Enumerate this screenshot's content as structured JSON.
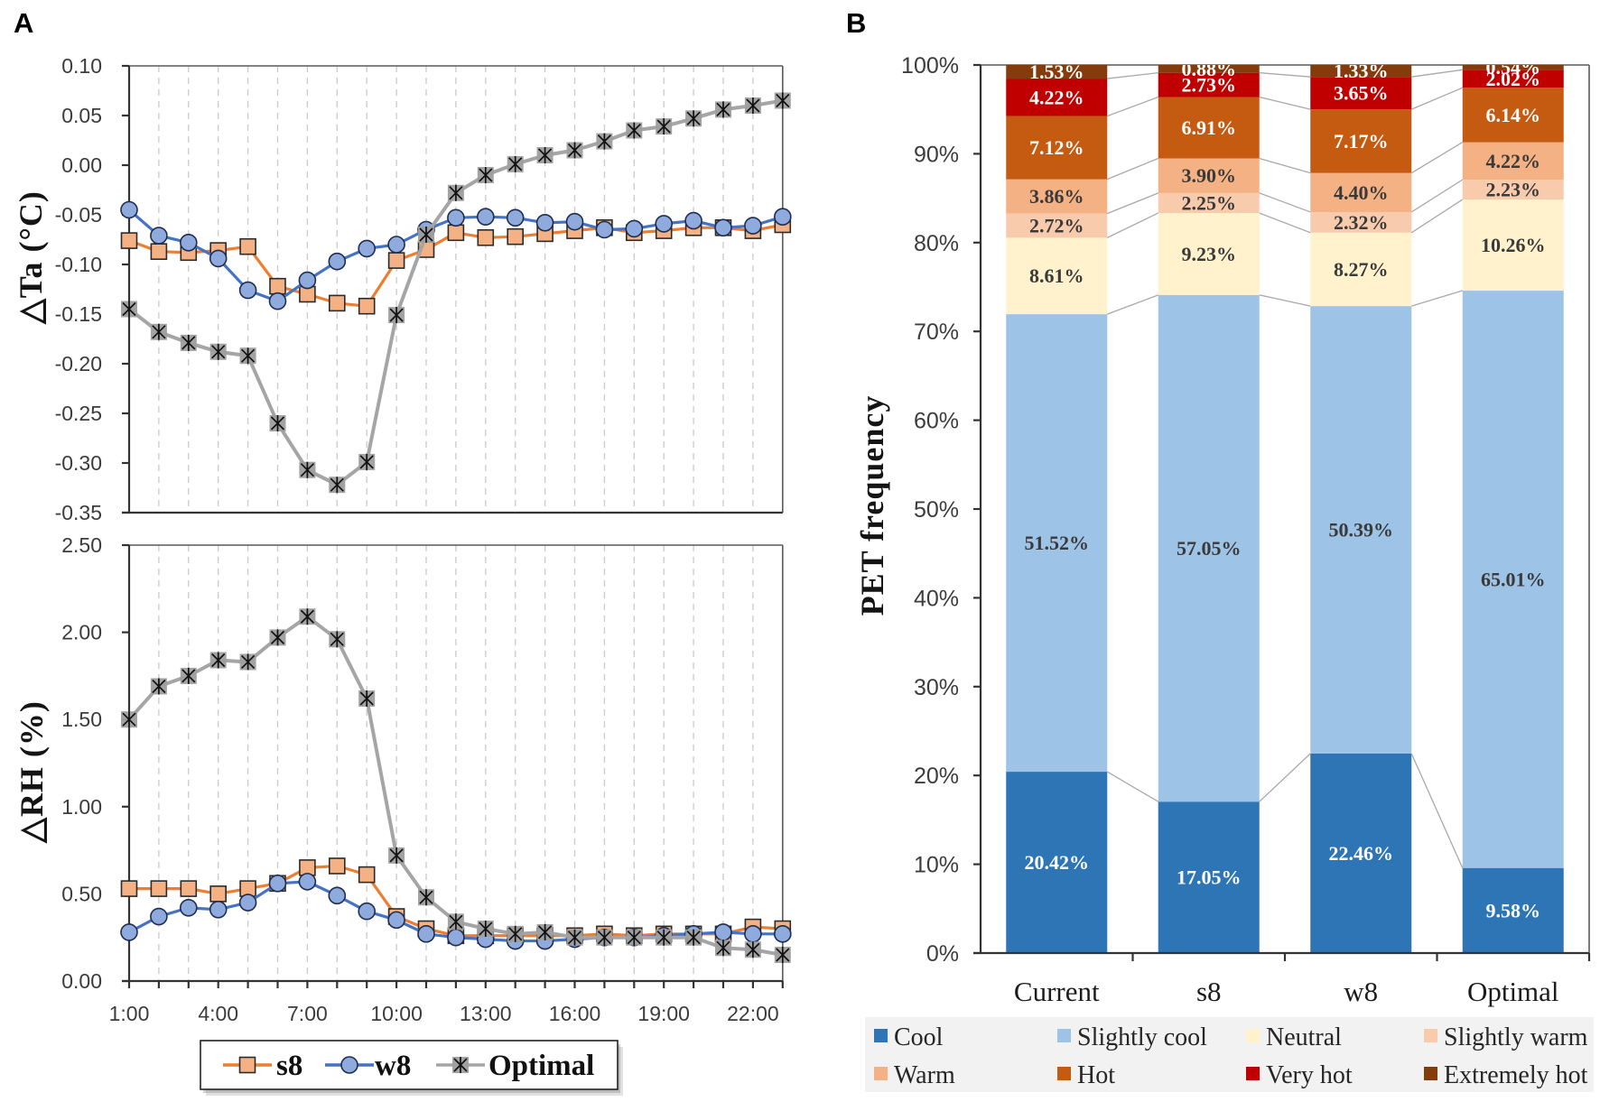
{
  "figure": {
    "panel_a_label": "A",
    "panel_b_label": "B"
  },
  "chart_data": [
    {
      "panel": "A",
      "type": "line",
      "title": "",
      "xlabel": "",
      "ylabel": "△Ta (°C)",
      "x": [
        "1:00",
        "2:00",
        "3:00",
        "4:00",
        "5:00",
        "6:00",
        "7:00",
        "8:00",
        "9:00",
        "10:00",
        "11:00",
        "12:00",
        "13:00",
        "14:00",
        "15:00",
        "16:00",
        "17:00",
        "18:00",
        "19:00",
        "20:00",
        "21:00",
        "22:00",
        "23:00"
      ],
      "ylim": [
        -0.35,
        0.1
      ],
      "yticks": [
        {
          "value": 0.1,
          "label": "0.10"
        },
        {
          "value": 0.05,
          "label": "0.05"
        },
        {
          "value": 0.0,
          "label": "0.00"
        },
        {
          "value": -0.05,
          "label": "-0.05"
        },
        {
          "value": -0.1,
          "label": "-0.10"
        },
        {
          "value": -0.15,
          "label": "-0.15"
        },
        {
          "value": -0.2,
          "label": "-0.20"
        },
        {
          "value": -0.25,
          "label": "-0.25"
        },
        {
          "value": -0.3,
          "label": "-0.30"
        },
        {
          "value": -0.35,
          "label": "-0.35"
        }
      ],
      "grid": "vertical dashed",
      "series": [
        {
          "name": "s8",
          "line_color": "#ED7D31",
          "marker": "square",
          "marker_fill": "#F4B183",
          "marker_stroke": "#2B2B2B",
          "values": [
            -0.076,
            -0.087,
            -0.088,
            -0.086,
            -0.082,
            -0.122,
            -0.13,
            -0.139,
            -0.142,
            -0.096,
            -0.085,
            -0.068,
            -0.073,
            -0.072,
            -0.069,
            -0.066,
            -0.063,
            -0.068,
            -0.066,
            -0.063,
            -0.063,
            -0.066,
            -0.06
          ]
        },
        {
          "name": "w8",
          "line_color": "#4472C4",
          "marker": "circle",
          "marker_fill": "#8FAADC",
          "marker_stroke": "#1F2D50",
          "values": [
            -0.045,
            -0.071,
            -0.078,
            -0.094,
            -0.126,
            -0.137,
            -0.116,
            -0.097,
            -0.084,
            -0.08,
            -0.065,
            -0.053,
            -0.052,
            -0.053,
            -0.058,
            -0.057,
            -0.065,
            -0.064,
            -0.059,
            -0.056,
            -0.063,
            -0.061,
            -0.052
          ]
        },
        {
          "name": "Optimal",
          "line_color": "#A5A5A5",
          "marker": "asterisk-square",
          "marker_fill": "#9E9E9E",
          "marker_stroke": "#111111",
          "values": [
            -0.145,
            -0.168,
            -0.179,
            -0.188,
            -0.192,
            -0.26,
            -0.307,
            -0.322,
            -0.299,
            -0.151,
            -0.07,
            -0.028,
            -0.01,
            0.001,
            0.01,
            0.015,
            0.024,
            0.035,
            0.039,
            0.047,
            0.056,
            0.06,
            0.065
          ]
        }
      ]
    },
    {
      "panel": "A",
      "type": "line",
      "title": "",
      "xlabel": "",
      "ylabel": "△RH (%)",
      "x": [
        "1:00",
        "2:00",
        "3:00",
        "4:00",
        "5:00",
        "6:00",
        "7:00",
        "8:00",
        "9:00",
        "10:00",
        "11:00",
        "12:00",
        "13:00",
        "14:00",
        "15:00",
        "16:00",
        "17:00",
        "18:00",
        "19:00",
        "20:00",
        "21:00",
        "22:00",
        "23:00"
      ],
      "xtick_labels": [
        "1:00",
        "4:00",
        "7:00",
        "10:00",
        "13:00",
        "16:00",
        "19:00",
        "22:00"
      ],
      "ylim": [
        0,
        2.5
      ],
      "yticks": [
        {
          "value": 2.5,
          "label": "2.50"
        },
        {
          "value": 2.0,
          "label": "2.00"
        },
        {
          "value": 1.5,
          "label": "1.50"
        },
        {
          "value": 1.0,
          "label": "1.00"
        },
        {
          "value": 0.5,
          "label": "0.50"
        },
        {
          "value": 0.0,
          "label": "0.00"
        }
      ],
      "grid": "vertical dashed",
      "legend": {
        "placement": "bottom-center"
      },
      "series": [
        {
          "name": "s8",
          "line_color": "#ED7D31",
          "marker": "square",
          "marker_fill": "#F4B183",
          "marker_stroke": "#2B2B2B",
          "values": [
            0.53,
            0.53,
            0.53,
            0.5,
            0.53,
            0.56,
            0.65,
            0.66,
            0.61,
            0.37,
            0.3,
            0.26,
            0.26,
            0.26,
            0.26,
            0.26,
            0.27,
            0.26,
            0.27,
            0.27,
            0.27,
            0.31,
            0.3
          ]
        },
        {
          "name": "w8",
          "line_color": "#4472C4",
          "marker": "circle",
          "marker_fill": "#8FAADC",
          "marker_stroke": "#1F2D50",
          "values": [
            0.28,
            0.37,
            0.42,
            0.41,
            0.45,
            0.56,
            0.57,
            0.49,
            0.4,
            0.35,
            0.27,
            0.25,
            0.24,
            0.23,
            0.23,
            0.24,
            0.25,
            0.25,
            0.26,
            0.27,
            0.28,
            0.27,
            0.27
          ]
        },
        {
          "name": "Optimal",
          "line_color": "#A5A5A5",
          "marker": "asterisk-square",
          "marker_fill": "#9E9E9E",
          "marker_stroke": "#111111",
          "values": [
            1.5,
            1.69,
            1.75,
            1.84,
            1.83,
            1.97,
            2.09,
            1.96,
            1.62,
            0.72,
            0.48,
            0.34,
            0.3,
            0.27,
            0.28,
            0.25,
            0.25,
            0.25,
            0.25,
            0.25,
            0.19,
            0.18,
            0.15
          ]
        }
      ]
    },
    {
      "panel": "B",
      "type": "bar",
      "stacked": true,
      "title": "",
      "xlabel": "",
      "ylabel": "PET frequency",
      "categories": [
        "Current",
        "s8",
        "w8",
        "Optimal"
      ],
      "ylim": [
        0,
        100
      ],
      "yticks": [
        {
          "value": 0,
          "label": "0%"
        },
        {
          "value": 10,
          "label": "10%"
        },
        {
          "value": 20,
          "label": "20%"
        },
        {
          "value": 30,
          "label": "30%"
        },
        {
          "value": 40,
          "label": "40%"
        },
        {
          "value": 50,
          "label": "50%"
        },
        {
          "value": 60,
          "label": "60%"
        },
        {
          "value": 70,
          "label": "70%"
        },
        {
          "value": 80,
          "label": "80%"
        },
        {
          "value": 90,
          "label": "90%"
        },
        {
          "value": 100,
          "label": "100%"
        }
      ],
      "legend": {
        "placement": "bottom"
      },
      "series": [
        {
          "name": "Cool",
          "color": "#2E75B6",
          "label_color": "#FFFFFF",
          "values": [
            20.42,
            17.05,
            22.46,
            9.58
          ],
          "labels": [
            "20.42%",
            "17.05%",
            "22.46%",
            "9.58%"
          ]
        },
        {
          "name": "Slightly cool",
          "color": "#9DC3E6",
          "label_color": "#3A3A3A",
          "values": [
            51.52,
            57.05,
            50.39,
            65.01
          ],
          "labels": [
            "51.52%",
            "57.05%",
            "50.39%",
            "65.01%"
          ]
        },
        {
          "name": "Neutral",
          "color": "#FFF2CC",
          "label_color": "#3A3A3A",
          "values": [
            8.61,
            9.23,
            8.27,
            10.26
          ],
          "labels": [
            "8.61%",
            "9.23%",
            "8.27%",
            "10.26%"
          ]
        },
        {
          "name": "Slightly warm",
          "color": "#F8CBAD",
          "label_color": "#3A3A3A",
          "values": [
            2.72,
            2.25,
            2.32,
            2.23
          ],
          "labels": [
            "2.72%",
            "2.25%",
            "2.32%",
            "2.23%"
          ]
        },
        {
          "name": "Warm",
          "color": "#F4B183",
          "label_color": "#3A3A3A",
          "values": [
            3.86,
            3.9,
            4.4,
            4.22
          ],
          "labels": [
            "3.86%",
            "3.90%",
            "4.40%",
            "4.22%"
          ]
        },
        {
          "name": "Hot",
          "color": "#C55A11",
          "label_color": "#FFFFFF",
          "values": [
            7.12,
            6.91,
            7.17,
            6.14
          ],
          "labels": [
            "7.12%",
            "6.91%",
            "7.17%",
            "6.14%"
          ]
        },
        {
          "name": "Very hot",
          "color": "#C00000",
          "label_color": "#FFFFFF",
          "values": [
            4.22,
            2.73,
            3.65,
            2.02
          ],
          "labels": [
            "4.22%",
            "2.73%",
            "3.65%",
            "2.02%"
          ]
        },
        {
          "name": "Extremely hot",
          "color": "#843C0C",
          "label_color": "#FFFFFF",
          "values": [
            1.53,
            0.88,
            1.33,
            0.54
          ],
          "labels": [
            "1.53%",
            "0.88%",
            "1.33%",
            "0.54%"
          ]
        }
      ]
    }
  ]
}
